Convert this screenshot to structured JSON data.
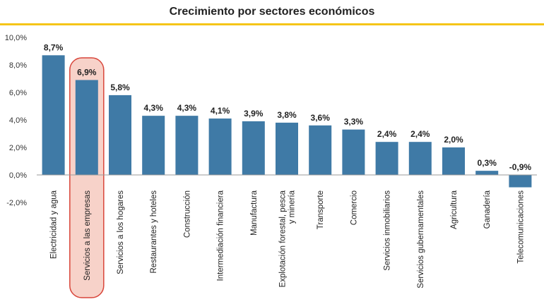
{
  "chart_data": {
    "type": "bar",
    "title": "Crecimiento por sectores económicos",
    "xlabel": "",
    "ylabel": "",
    "ylim": [
      -2,
      10
    ],
    "yticks": [
      -2,
      0,
      2,
      4,
      6,
      8,
      10
    ],
    "ytick_labels": [
      "-2,0%",
      "0,0%",
      "2,0%",
      "4,0%",
      "6,0%",
      "8,0%",
      "10,0%"
    ],
    "categories": [
      [
        "Electricidad y agua"
      ],
      [
        "Servicios a las empresas"
      ],
      [
        "Servicios a los hogares"
      ],
      [
        "Restaurantes y hoteles"
      ],
      [
        "Construcción"
      ],
      [
        "Intermediación financiera"
      ],
      [
        "Manufactura"
      ],
      [
        "Explotación forestal, pesca",
        "y minería"
      ],
      [
        "Transporte"
      ],
      [
        "Comercio"
      ],
      [
        "Servicios inmobiliarios"
      ],
      [
        "Servicios gubernamentales"
      ],
      [
        "Agricultura"
      ],
      [
        "Ganadería"
      ],
      [
        "Telecomunicaciones"
      ]
    ],
    "values": [
      8.7,
      6.9,
      5.8,
      4.3,
      4.3,
      4.1,
      3.9,
      3.8,
      3.6,
      3.3,
      2.4,
      2.4,
      2.0,
      0.3,
      -0.9
    ],
    "value_labels": [
      "8,7%",
      "6,9%",
      "5,8%",
      "4,3%",
      "4,3%",
      "4,1%",
      "3,9%",
      "3,8%",
      "3,6%",
      "3,3%",
      "2,4%",
      "2,4%",
      "2,0%",
      "0,3%",
      "-0,9%"
    ],
    "highlight_index": 1,
    "grid": false,
    "legend": "none"
  },
  "colors": {
    "bar": "#3f7aa6",
    "highlight_fill": "#f7d2c9",
    "highlight_stroke": "#d8453a",
    "accent_rule": "#f5c518",
    "axis": "#999999"
  }
}
